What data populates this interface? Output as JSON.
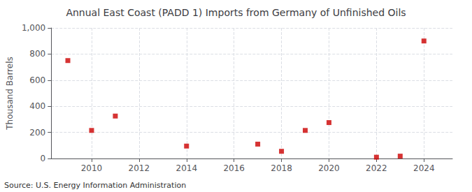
{
  "chart_data": {
    "type": "scatter",
    "title": "Annual East Coast (PADD 1) Imports from Germany of Unfinished Oils",
    "ylabel": "Thousand Barrels",
    "annotations": [
      "Source: U.S. Energy Information Administration"
    ],
    "x": [
      2009,
      2010,
      2011,
      2014,
      2017,
      2018,
      2019,
      2020,
      2022,
      2023,
      2024
    ],
    "values": [
      750,
      215,
      325,
      95,
      110,
      55,
      215,
      275,
      10,
      18,
      900
    ],
    "color": "#cc0000",
    "marker": "square",
    "xlim": [
      2008.3,
      2025.2
    ],
    "xticks": [
      2010,
      2012,
      2014,
      2016,
      2018,
      2020,
      2022,
      2024
    ],
    "ylim": [
      0,
      1000
    ],
    "yticks": [
      0,
      200,
      400,
      600,
      800,
      {
        "value": 1000,
        "label": "1,000"
      }
    ],
    "grid": true
  }
}
